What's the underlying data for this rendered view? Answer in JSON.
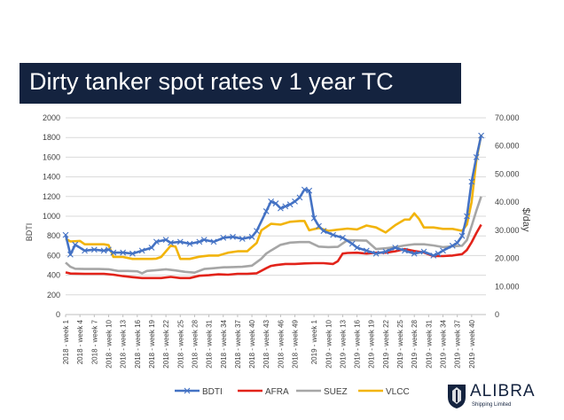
{
  "title": "Dirty tanker spot rates v 1 year TC",
  "logo": {
    "name": "ALIBRA",
    "sub": "Shipping Limited"
  },
  "chart_data": {
    "type": "line",
    "title": "Dirty tanker spot rates v 1 year TC",
    "ylabel": "BDTI",
    "y2label": "$/day",
    "ylim": [
      0,
      2000
    ],
    "y2lim": [
      0,
      70000
    ],
    "y_ticks": [
      "0",
      "200",
      "400",
      "600",
      "800",
      "1000",
      "1200",
      "1400",
      "1600",
      "1800",
      "2000"
    ],
    "y2_ticks": [
      "0",
      "10.000",
      "20.000",
      "30.000",
      "40.000",
      "50.000",
      "60.000",
      "70.000"
    ],
    "x_tick_labels": [
      "2018 - week 1",
      "2018 - week 4",
      "2018 - week 7",
      "2018 - week 10",
      "2018 - week 13",
      "2018 - week 16",
      "2018 - week 19",
      "2018 - week 22",
      "2018 - week 25",
      "2018 - week 28",
      "2018 - week 31",
      "2018 - week 34",
      "2018 - week 37",
      "2018 - week 40",
      "2018 - week 43",
      "2018 - week 46",
      "2018 - week 49",
      "2019 - week 1",
      "2019 - week 10",
      "2019 - week 13",
      "2019 - week 16",
      "2019 - week 19",
      "2019 - week 22",
      "2019 - week 25",
      "2019 - week 28",
      "2019 - week 31",
      "2019 - week 34",
      "2019 - week 37",
      "2019 - week 40"
    ],
    "x_tick_positions": [
      1,
      4,
      7,
      10,
      13,
      16,
      19,
      22,
      25,
      28,
      31,
      34,
      37,
      40,
      43,
      46,
      49,
      53,
      56,
      59,
      62,
      65,
      68,
      71,
      74,
      77,
      80,
      83,
      86
    ],
    "x_range": [
      1,
      89
    ],
    "legend_position": "bottom",
    "grid": true,
    "series": [
      {
        "name": "BDTI",
        "axis": "left",
        "color": "#4472c4",
        "marker": "x",
        "points": [
          [
            1,
            810
          ],
          [
            2,
            610
          ],
          [
            3,
            710
          ],
          [
            5,
            650
          ],
          [
            7,
            660
          ],
          [
            9,
            650
          ],
          [
            10,
            660
          ],
          [
            11,
            630
          ],
          [
            13,
            630
          ],
          [
            15,
            620
          ],
          [
            17,
            650
          ],
          [
            19,
            680
          ],
          [
            20,
            740
          ],
          [
            22,
            760
          ],
          [
            23,
            730
          ],
          [
            25,
            740
          ],
          [
            27,
            720
          ],
          [
            29,
            740
          ],
          [
            30,
            760
          ],
          [
            32,
            740
          ],
          [
            34,
            780
          ],
          [
            36,
            790
          ],
          [
            38,
            770
          ],
          [
            40,
            790
          ],
          [
            41,
            850
          ],
          [
            43,
            1050
          ],
          [
            44,
            1150
          ],
          [
            45,
            1130
          ],
          [
            46,
            1080
          ],
          [
            47,
            1100
          ],
          [
            48,
            1120
          ],
          [
            49,
            1150
          ],
          [
            50,
            1190
          ],
          [
            51,
            1270
          ],
          [
            52,
            1260
          ],
          [
            53,
            980
          ],
          [
            54,
            900
          ],
          [
            55,
            850
          ],
          [
            57,
            810
          ],
          [
            59,
            780
          ],
          [
            61,
            720
          ],
          [
            62,
            680
          ],
          [
            64,
            650
          ],
          [
            66,
            620
          ],
          [
            68,
            640
          ],
          [
            70,
            680
          ],
          [
            72,
            650
          ],
          [
            74,
            620
          ],
          [
            76,
            640
          ],
          [
            78,
            600
          ],
          [
            79,
            620
          ],
          [
            80,
            650
          ],
          [
            82,
            700
          ],
          [
            83,
            730
          ],
          [
            84,
            800
          ],
          [
            85,
            1000
          ],
          [
            86,
            1350
          ],
          [
            87,
            1600
          ],
          [
            88,
            1820
          ]
        ]
      },
      {
        "name": "AFRA",
        "axis": "right",
        "color": "#e2231a",
        "points": [
          [
            1,
            15000
          ],
          [
            2,
            14600
          ],
          [
            5,
            14500
          ],
          [
            9,
            14500
          ],
          [
            11,
            14200
          ],
          [
            13,
            13700
          ],
          [
            15,
            13300
          ],
          [
            17,
            13000
          ],
          [
            19,
            13000
          ],
          [
            21,
            13000
          ],
          [
            23,
            13400
          ],
          [
            25,
            13000
          ],
          [
            27,
            13000
          ],
          [
            29,
            13800
          ],
          [
            31,
            14000
          ],
          [
            33,
            14300
          ],
          [
            35,
            14200
          ],
          [
            37,
            14500
          ],
          [
            39,
            14500
          ],
          [
            41,
            14700
          ],
          [
            43,
            16500
          ],
          [
            44,
            17300
          ],
          [
            45,
            17600
          ],
          [
            47,
            18000
          ],
          [
            49,
            18000
          ],
          [
            51,
            18200
          ],
          [
            53,
            18300
          ],
          [
            55,
            18300
          ],
          [
            57,
            18000
          ],
          [
            58,
            19000
          ],
          [
            59,
            21700
          ],
          [
            60,
            21900
          ],
          [
            62,
            22000
          ],
          [
            64,
            21700
          ],
          [
            66,
            22000
          ],
          [
            68,
            22000
          ],
          [
            70,
            22500
          ],
          [
            72,
            23300
          ],
          [
            74,
            22600
          ],
          [
            76,
            22100
          ],
          [
            78,
            20800
          ],
          [
            80,
            20800
          ],
          [
            82,
            21000
          ],
          [
            84,
            21500
          ],
          [
            85,
            23000
          ],
          [
            86,
            25700
          ],
          [
            87,
            29000
          ],
          [
            88,
            32000
          ]
        ]
      },
      {
        "name": "SUEZ",
        "axis": "right",
        "color": "#a6a6a6",
        "points": [
          [
            1,
            18500
          ],
          [
            2,
            17000
          ],
          [
            3,
            16300
          ],
          [
            5,
            16200
          ],
          [
            8,
            16200
          ],
          [
            10,
            16100
          ],
          [
            12,
            15500
          ],
          [
            14,
            15500
          ],
          [
            16,
            15400
          ],
          [
            17,
            14700
          ],
          [
            18,
            15500
          ],
          [
            20,
            15800
          ],
          [
            22,
            16100
          ],
          [
            24,
            15700
          ],
          [
            26,
            15200
          ],
          [
            28,
            14900
          ],
          [
            30,
            16200
          ],
          [
            32,
            16500
          ],
          [
            34,
            16800
          ],
          [
            36,
            16900
          ],
          [
            38,
            17000
          ],
          [
            40,
            17400
          ],
          [
            42,
            19900
          ],
          [
            43,
            21700
          ],
          [
            44,
            22800
          ],
          [
            46,
            24800
          ],
          [
            48,
            25600
          ],
          [
            50,
            25800
          ],
          [
            52,
            25800
          ],
          [
            54,
            24200
          ],
          [
            56,
            24000
          ],
          [
            58,
            24100
          ],
          [
            60,
            26500
          ],
          [
            62,
            26400
          ],
          [
            64,
            26300
          ],
          [
            66,
            23300
          ],
          [
            68,
            23600
          ],
          [
            70,
            24000
          ],
          [
            72,
            24600
          ],
          [
            74,
            25000
          ],
          [
            76,
            25000
          ],
          [
            78,
            24600
          ],
          [
            80,
            24000
          ],
          [
            82,
            24300
          ],
          [
            84,
            24500
          ],
          [
            85,
            26500
          ],
          [
            86,
            31500
          ],
          [
            87,
            37000
          ],
          [
            88,
            42000
          ]
        ]
      },
      {
        "name": "VLCC",
        "axis": "right",
        "color": "#f2b40b",
        "points": [
          [
            1,
            27000
          ],
          [
            2,
            26000
          ],
          [
            4,
            26200
          ],
          [
            5,
            25000
          ],
          [
            7,
            25000
          ],
          [
            9,
            25000
          ],
          [
            10,
            24700
          ],
          [
            11,
            20500
          ],
          [
            13,
            20500
          ],
          [
            15,
            19800
          ],
          [
            17,
            19800
          ],
          [
            19,
            19800
          ],
          [
            20,
            19900
          ],
          [
            21,
            20500
          ],
          [
            23,
            24500
          ],
          [
            24,
            24200
          ],
          [
            25,
            19800
          ],
          [
            27,
            19800
          ],
          [
            29,
            20600
          ],
          [
            31,
            21000
          ],
          [
            33,
            21000
          ],
          [
            35,
            22000
          ],
          [
            37,
            22500
          ],
          [
            39,
            22500
          ],
          [
            41,
            25500
          ],
          [
            42,
            30000
          ],
          [
            44,
            32300
          ],
          [
            46,
            32000
          ],
          [
            48,
            33000
          ],
          [
            50,
            33300
          ],
          [
            51,
            33300
          ],
          [
            52,
            30000
          ],
          [
            54,
            30800
          ],
          [
            56,
            29800
          ],
          [
            58,
            30200
          ],
          [
            60,
            30600
          ],
          [
            62,
            30300
          ],
          [
            64,
            31700
          ],
          [
            66,
            31000
          ],
          [
            68,
            29200
          ],
          [
            70,
            31800
          ],
          [
            72,
            33800
          ],
          [
            73,
            33800
          ],
          [
            74,
            36000
          ],
          [
            75,
            34000
          ],
          [
            76,
            31000
          ],
          [
            78,
            31000
          ],
          [
            80,
            30500
          ],
          [
            82,
            30500
          ],
          [
            84,
            29800
          ],
          [
            85,
            32000
          ],
          [
            86,
            40000
          ],
          [
            87,
            55000
          ],
          [
            88,
            64000
          ]
        ]
      }
    ]
  }
}
